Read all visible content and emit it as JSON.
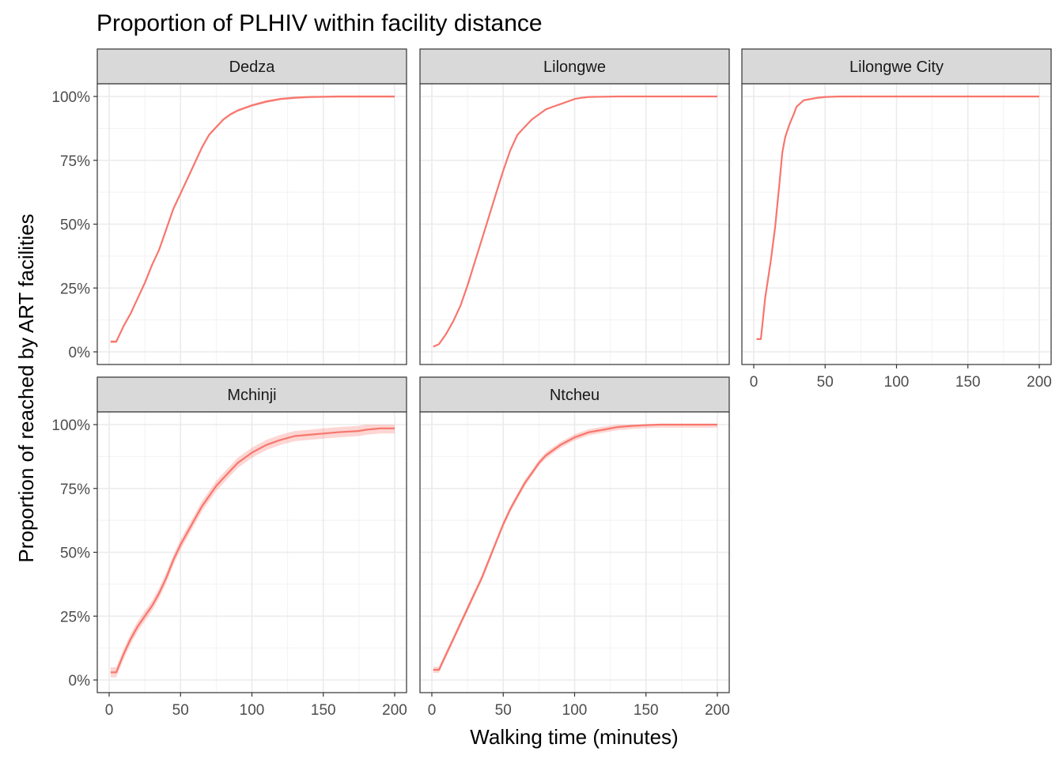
{
  "chart_data": {
    "type": "line",
    "title": "Proportion of PLHIV within facility distance",
    "xlabel": "Walking time (minutes)",
    "ylabel": "Proportion of reached by ART facilities",
    "xlim": [
      0,
      200
    ],
    "ylim": [
      0,
      1
    ],
    "x_ticks": [
      0,
      50,
      100,
      150,
      200
    ],
    "y_ticks": [
      0,
      0.25,
      0.5,
      0.75,
      1.0
    ],
    "y_tick_labels": [
      "0%",
      "25%",
      "50%",
      "75%",
      "100%"
    ],
    "x_tick_labels": [
      "0",
      "50",
      "100",
      "150",
      "200"
    ],
    "grid": true,
    "line_color": "#F8766D",
    "panels": [
      {
        "name": "Dedza",
        "x": [
          1,
          5,
          10,
          15,
          20,
          25,
          30,
          35,
          40,
          45,
          50,
          55,
          60,
          65,
          70,
          75,
          80,
          85,
          90,
          95,
          100,
          110,
          120,
          130,
          140,
          150,
          160,
          180,
          200
        ],
        "y": [
          0.04,
          0.04,
          0.1,
          0.15,
          0.21,
          0.27,
          0.34,
          0.4,
          0.48,
          0.56,
          0.62,
          0.68,
          0.74,
          0.8,
          0.85,
          0.88,
          0.91,
          0.93,
          0.945,
          0.955,
          0.965,
          0.98,
          0.99,
          0.995,
          0.998,
          0.999,
          1.0,
          1.0,
          1.0
        ],
        "band": 0.005
      },
      {
        "name": "Lilongwe",
        "x": [
          1,
          5,
          10,
          15,
          20,
          25,
          30,
          35,
          40,
          45,
          50,
          55,
          60,
          65,
          70,
          75,
          80,
          85,
          90,
          95,
          100,
          105,
          110,
          120,
          130,
          140,
          150,
          160,
          180,
          200
        ],
        "y": [
          0.02,
          0.03,
          0.07,
          0.12,
          0.18,
          0.26,
          0.35,
          0.44,
          0.53,
          0.62,
          0.71,
          0.79,
          0.85,
          0.88,
          0.91,
          0.93,
          0.95,
          0.96,
          0.97,
          0.98,
          0.99,
          0.995,
          0.998,
          0.999,
          1.0,
          1.0,
          1.0,
          1.0,
          1.0,
          1.0
        ],
        "band": 0.003
      },
      {
        "name": "Lilongwe City",
        "x": [
          2,
          5,
          8,
          12,
          15,
          18,
          20,
          22,
          25,
          28,
          30,
          35,
          40,
          45,
          50,
          55,
          60,
          70,
          80,
          100,
          150,
          200
        ],
        "y": [
          0.05,
          0.05,
          0.21,
          0.36,
          0.49,
          0.66,
          0.78,
          0.84,
          0.89,
          0.93,
          0.96,
          0.985,
          0.99,
          0.995,
          0.998,
          0.999,
          1.0,
          1.0,
          1.0,
          1.0,
          1.0,
          1.0
        ],
        "band": 0.004
      },
      {
        "name": "Mchinji",
        "x": [
          1,
          5,
          10,
          15,
          20,
          25,
          30,
          35,
          40,
          45,
          50,
          55,
          60,
          65,
          70,
          75,
          80,
          85,
          90,
          95,
          100,
          110,
          120,
          130,
          140,
          150,
          160,
          175,
          180,
          190,
          200
        ],
        "y": [
          0.03,
          0.03,
          0.1,
          0.16,
          0.21,
          0.25,
          0.29,
          0.34,
          0.4,
          0.47,
          0.53,
          0.58,
          0.63,
          0.68,
          0.72,
          0.76,
          0.79,
          0.82,
          0.85,
          0.87,
          0.89,
          0.92,
          0.94,
          0.955,
          0.96,
          0.965,
          0.97,
          0.975,
          0.98,
          0.985,
          0.985
        ],
        "band": 0.02
      },
      {
        "name": "Ntcheu",
        "x": [
          1,
          5,
          10,
          15,
          20,
          25,
          30,
          35,
          40,
          45,
          50,
          55,
          60,
          65,
          70,
          75,
          80,
          85,
          90,
          95,
          100,
          110,
          120,
          130,
          140,
          150,
          160,
          180,
          200
        ],
        "y": [
          0.04,
          0.04,
          0.1,
          0.16,
          0.22,
          0.28,
          0.34,
          0.4,
          0.47,
          0.54,
          0.61,
          0.67,
          0.72,
          0.77,
          0.81,
          0.85,
          0.88,
          0.9,
          0.92,
          0.935,
          0.95,
          0.97,
          0.98,
          0.99,
          0.995,
          0.998,
          1.0,
          1.0,
          1.0
        ],
        "band": 0.012
      }
    ]
  }
}
